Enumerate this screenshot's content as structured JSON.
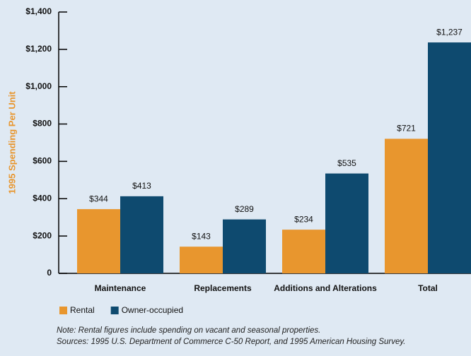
{
  "chart_data": {
    "type": "bar",
    "y_label": "1995 Spending Per Unit",
    "categories": [
      "Maintenance",
      "Replacements",
      "Additions and Alterations",
      "Total"
    ],
    "series": [
      {
        "name": "Rental",
        "color": "#e8962e",
        "values": [
          344,
          143,
          234,
          721
        ],
        "value_labels": [
          "$344",
          "$143",
          "$234",
          "$721"
        ]
      },
      {
        "name": "Owner-occupied",
        "color": "#0e4a6f",
        "values": [
          413,
          289,
          535,
          1237
        ],
        "value_labels": [
          "$413",
          "$289",
          "$535",
          "$1,237"
        ]
      }
    ],
    "ylim": [
      0,
      1400
    ],
    "yticks": [
      0,
      {
        "value": 200,
        "label": "$200"
      },
      {
        "value": 400,
        "label": "$400"
      },
      {
        "value": 600,
        "label": "$600"
      },
      {
        "value": 800,
        "label": "$800"
      },
      {
        "value": 1000,
        "label": "$1,000"
      },
      {
        "value": 1200,
        "label": "$1,200"
      },
      {
        "value": 1400,
        "label": "$1,400"
      }
    ],
    "legend": "bottom-left",
    "notes": [
      "Note: Rental figures include spending on vacant and seasonal properties.",
      "Sources: 1995 U.S. Department of Commerce C-50 Report, and 1995 American Housing Survey."
    ]
  }
}
